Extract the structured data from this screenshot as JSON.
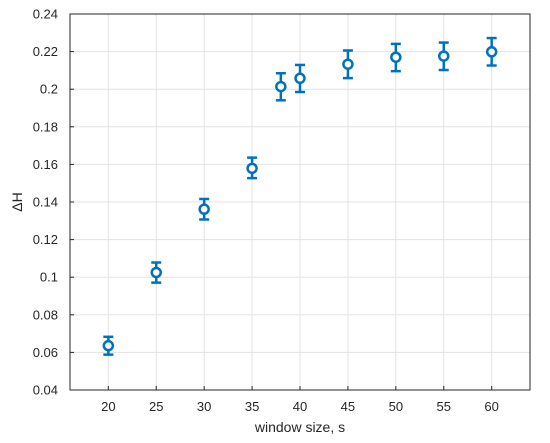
{
  "chart_data": {
    "type": "scatter",
    "xlabel": "window size, s",
    "ylabel": "ΔH",
    "xlim": [
      16,
      64
    ],
    "ylim": [
      0.04,
      0.24
    ],
    "xticks": [
      20,
      25,
      30,
      35,
      40,
      45,
      50,
      55,
      60
    ],
    "yticks": [
      0.04,
      0.06,
      0.08,
      0.1,
      0.12,
      0.14,
      0.16,
      0.18,
      0.2,
      0.22,
      0.24
    ],
    "ytick_labels": [
      "0.04",
      "0.06",
      "0.08",
      "0.1",
      "0.12",
      "0.14",
      "0.16",
      "0.18",
      "0.2",
      "0.22",
      "0.24"
    ],
    "grid": true,
    "marker": "circle-with-errorbars",
    "series": [
      {
        "color": "#0072bd",
        "points": [
          {
            "x": 20,
            "y": 0.0636,
            "ylow": 0.0588,
            "yhigh": 0.0683
          },
          {
            "x": 25,
            "y": 0.1025,
            "ylow": 0.0971,
            "yhigh": 0.1078
          },
          {
            "x": 30,
            "y": 0.1362,
            "ylow": 0.1307,
            "yhigh": 0.1416
          },
          {
            "x": 35,
            "y": 0.1579,
            "ylow": 0.1527,
            "yhigh": 0.1636
          },
          {
            "x": 38,
            "y": 0.2014,
            "ylow": 0.1941,
            "yhigh": 0.2085
          },
          {
            "x": 40,
            "y": 0.2058,
            "ylow": 0.1985,
            "yhigh": 0.2129
          },
          {
            "x": 45,
            "y": 0.2133,
            "ylow": 0.2059,
            "yhigh": 0.2206
          },
          {
            "x": 50,
            "y": 0.217,
            "ylow": 0.2096,
            "yhigh": 0.2241
          },
          {
            "x": 55,
            "y": 0.2176,
            "ylow": 0.2102,
            "yhigh": 0.2248
          },
          {
            "x": 60,
            "y": 0.2199,
            "ylow": 0.2126,
            "yhigh": 0.2272
          }
        ]
      }
    ]
  }
}
